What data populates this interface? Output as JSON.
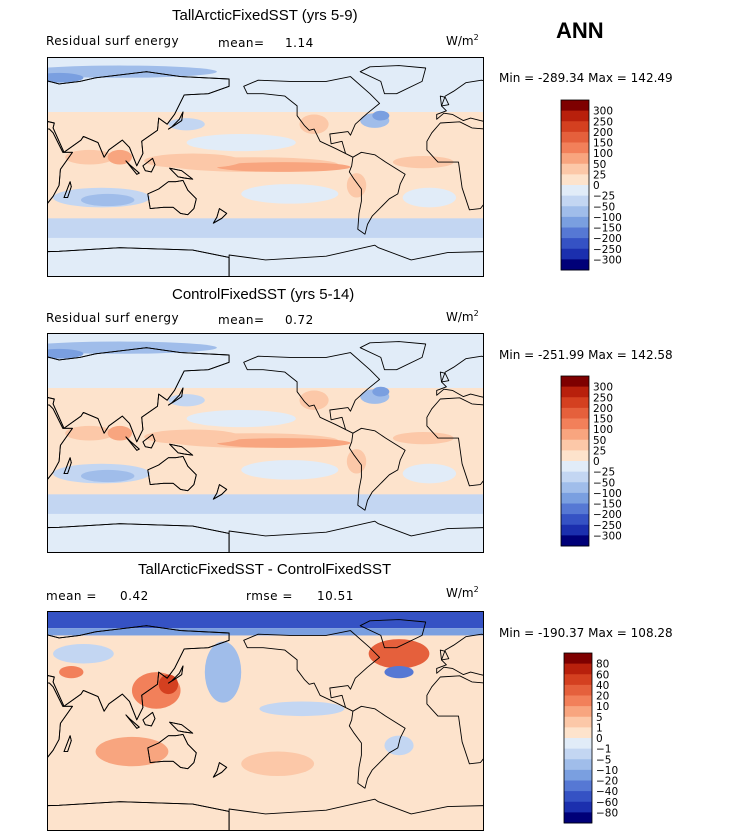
{
  "season": "ANN",
  "units": {
    "base": "W/m",
    "exp": "2"
  },
  "colors": {
    "warm": [
      "#fde3cc",
      "#fcc8a8",
      "#f8a57f",
      "#f2805a",
      "#e5603c",
      "#d44020",
      "#b8200c",
      "#7e0000"
    ],
    "cool": [
      "#e1ecf8",
      "#c3d6f2",
      "#a0bdea",
      "#7a9fe0",
      "#5678d4",
      "#3552c4",
      "#1b2fae",
      "#000078"
    ],
    "land_outline": "#000000",
    "frame": "#000000"
  },
  "chart_data": [
    {
      "type": "heatmap",
      "title": "TallArcticFixedSST (yrs 5-9)",
      "variable": "Residual surf energy",
      "mean_label": "mean=",
      "mean": "1.14",
      "min_label": "Min =",
      "min": "-289.34",
      "max_label": "Max =",
      "max": "142.49",
      "colorbar_levels": [
        "300",
        "250",
        "200",
        "150",
        "100",
        "50",
        "25",
        "0",
        "−25",
        "−50",
        "−100",
        "−150",
        "−200",
        "−250",
        "−300"
      ]
    },
    {
      "type": "heatmap",
      "title": "ControlFixedSST (yrs 5-14)",
      "variable": "Residual surf energy",
      "mean_label": "mean=",
      "mean": "0.72",
      "min_label": "Min =",
      "min": "-251.99",
      "max_label": "Max =",
      "max": "142.58",
      "colorbar_levels": [
        "300",
        "250",
        "200",
        "150",
        "100",
        "50",
        "25",
        "0",
        "−25",
        "−50",
        "−100",
        "−150",
        "−200",
        "−250",
        "−300"
      ]
    },
    {
      "type": "heatmap",
      "title": "TallArcticFixedSST - ControlFixedSST",
      "mean_label": "mean =",
      "mean": "0.42",
      "rmse_label": "rmse =",
      "rmse": "10.51",
      "min_label": "Min =",
      "min": "-190.37",
      "max_label": "Max =",
      "max": "108.28",
      "colorbar_levels": [
        "80",
        "60",
        "40",
        "20",
        "10",
        "5",
        "1",
        "0",
        "−1",
        "−5",
        "−10",
        "−20",
        "−40",
        "−60",
        "−80"
      ]
    }
  ]
}
